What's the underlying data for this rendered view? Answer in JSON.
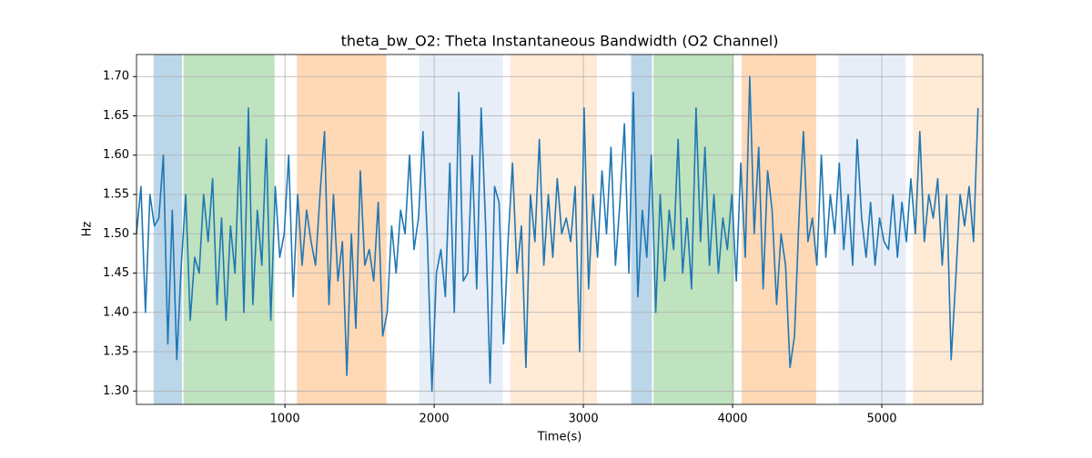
{
  "chart_data": {
    "type": "line",
    "title": "theta_bw_O2: Theta Instantaneous Bandwidth (O2 Channel)",
    "xlabel": "Time(s)",
    "ylabel": "Hz",
    "xlim": [
      5,
      5677
    ],
    "ylim": [
      1.283,
      1.728
    ],
    "xticks": [
      1000,
      2000,
      3000,
      4000,
      5000
    ],
    "yticks": [
      {
        "value": 1.3,
        "label": "1.30"
      },
      1.35,
      {
        "value": 1.4,
        "label": "1.40"
      },
      1.45,
      {
        "value": 1.5,
        "label": "1.50"
      },
      1.55,
      {
        "value": 1.6,
        "label": "1.60"
      },
      1.65,
      {
        "value": 1.7,
        "label": "1.70"
      }
    ],
    "grid": true,
    "spans": [
      {
        "start": 120,
        "end": 310,
        "color": "#1f77b4",
        "opacity": 0.3
      },
      {
        "start": 320,
        "end": 930,
        "color": "#2ca02c",
        "opacity": 0.3
      },
      {
        "start": 1080,
        "end": 1680,
        "color": "#ff7f0e",
        "opacity": 0.3
      },
      {
        "start": 1900,
        "end": 2460,
        "color": "#aec7e8",
        "opacity": 0.3
      },
      {
        "start": 2510,
        "end": 3090,
        "color": "#ffbb78",
        "opacity": 0.3
      },
      {
        "start": 3320,
        "end": 3460,
        "color": "#1f77b4",
        "opacity": 0.3
      },
      {
        "start": 3470,
        "end": 4010,
        "color": "#2ca02c",
        "opacity": 0.3
      },
      {
        "start": 4060,
        "end": 4560,
        "color": "#ff7f0e",
        "opacity": 0.3
      },
      {
        "start": 4710,
        "end": 5160,
        "color": "#aec7e8",
        "opacity": 0.3
      },
      {
        "start": 5210,
        "end": 5677,
        "color": "#ffbb78",
        "opacity": 0.3
      }
    ],
    "x": [
      5,
      35,
      65,
      95,
      125,
      155,
      185,
      215,
      245,
      275,
      305,
      335,
      365,
      395,
      425,
      455,
      485,
      515,
      545,
      575,
      605,
      635,
      665,
      695,
      725,
      755,
      785,
      815,
      845,
      875,
      905,
      935,
      965,
      995,
      1025,
      1055,
      1085,
      1115,
      1145,
      1175,
      1205,
      1235,
      1265,
      1295,
      1325,
      1355,
      1385,
      1415,
      1445,
      1475,
      1505,
      1535,
      1565,
      1595,
      1625,
      1655,
      1685,
      1715,
      1745,
      1775,
      1805,
      1835,
      1865,
      1895,
      1925,
      1955,
      1985,
      2015,
      2045,
      2075,
      2105,
      2135,
      2165,
      2195,
      2225,
      2255,
      2285,
      2315,
      2345,
      2375,
      2405,
      2435,
      2465,
      2495,
      2525,
      2555,
      2585,
      2615,
      2645,
      2675,
      2705,
      2735,
      2765,
      2795,
      2825,
      2855,
      2885,
      2915,
      2945,
      2975,
      3005,
      3035,
      3065,
      3095,
      3125,
      3155,
      3185,
      3215,
      3245,
      3275,
      3305,
      3335,
      3365,
      3395,
      3425,
      3455,
      3485,
      3515,
      3545,
      3575,
      3605,
      3635,
      3665,
      3695,
      3725,
      3755,
      3785,
      3815,
      3845,
      3875,
      3905,
      3935,
      3965,
      3995,
      4025,
      4055,
      4085,
      4115,
      4145,
      4175,
      4205,
      4235,
      4265,
      4295,
      4325,
      4355,
      4385,
      4415,
      4445,
      4475,
      4505,
      4535,
      4565,
      4595,
      4625,
      4655,
      4685,
      4715,
      4745,
      4775,
      4805,
      4835,
      4865,
      4895,
      4925,
      4955,
      4985,
      5015,
      5045,
      5075,
      5105,
      5135,
      5165,
      5195,
      5225,
      5255,
      5285,
      5315,
      5345,
      5375,
      5405,
      5435,
      5465,
      5495,
      5525,
      5555,
      5585,
      5615,
      5645
    ],
    "series": [
      {
        "color": "#1f77b4",
        "values": [
          1.5,
          1.56,
          1.4,
          1.55,
          1.51,
          1.52,
          1.6,
          1.36,
          1.53,
          1.34,
          1.46,
          1.55,
          1.39,
          1.47,
          1.45,
          1.55,
          1.49,
          1.57,
          1.41,
          1.52,
          1.39,
          1.51,
          1.45,
          1.61,
          1.4,
          1.66,
          1.41,
          1.53,
          1.46,
          1.62,
          1.39,
          1.56,
          1.47,
          1.5,
          1.6,
          1.42,
          1.55,
          1.46,
          1.53,
          1.49,
          1.46,
          1.55,
          1.63,
          1.41,
          1.55,
          1.44,
          1.49,
          1.32,
          1.5,
          1.38,
          1.58,
          1.46,
          1.48,
          1.44,
          1.54,
          1.37,
          1.4,
          1.51,
          1.45,
          1.53,
          1.5,
          1.6,
          1.48,
          1.52,
          1.63,
          1.49,
          1.3,
          1.45,
          1.48,
          1.42,
          1.59,
          1.4,
          1.68,
          1.44,
          1.45,
          1.6,
          1.43,
          1.66,
          1.51,
          1.31,
          1.56,
          1.54,
          1.36,
          1.49,
          1.59,
          1.45,
          1.51,
          1.33,
          1.55,
          1.49,
          1.62,
          1.46,
          1.55,
          1.47,
          1.57,
          1.5,
          1.52,
          1.49,
          1.56,
          1.35,
          1.66,
          1.43,
          1.55,
          1.47,
          1.58,
          1.5,
          1.61,
          1.46,
          1.54,
          1.64,
          1.45,
          1.68,
          1.42,
          1.53,
          1.47,
          1.6,
          1.4,
          1.55,
          1.44,
          1.53,
          1.48,
          1.62,
          1.45,
          1.52,
          1.43,
          1.66,
          1.49,
          1.61,
          1.46,
          1.55,
          1.45,
          1.52,
          1.48,
          1.55,
          1.44,
          1.59,
          1.47,
          1.7,
          1.5,
          1.61,
          1.43,
          1.58,
          1.53,
          1.41,
          1.5,
          1.46,
          1.33,
          1.37,
          1.52,
          1.63,
          1.49,
          1.52,
          1.46,
          1.6,
          1.47,
          1.55,
          1.5,
          1.59,
          1.48,
          1.55,
          1.46,
          1.62,
          1.52,
          1.47,
          1.54,
          1.46,
          1.52,
          1.49,
          1.48,
          1.55,
          1.47,
          1.54,
          1.49,
          1.57,
          1.5,
          1.63,
          1.49,
          1.55,
          1.52,
          1.57,
          1.46,
          1.55,
          1.34,
          1.44,
          1.55,
          1.51,
          1.56,
          1.49,
          1.66
        ]
      }
    ]
  }
}
